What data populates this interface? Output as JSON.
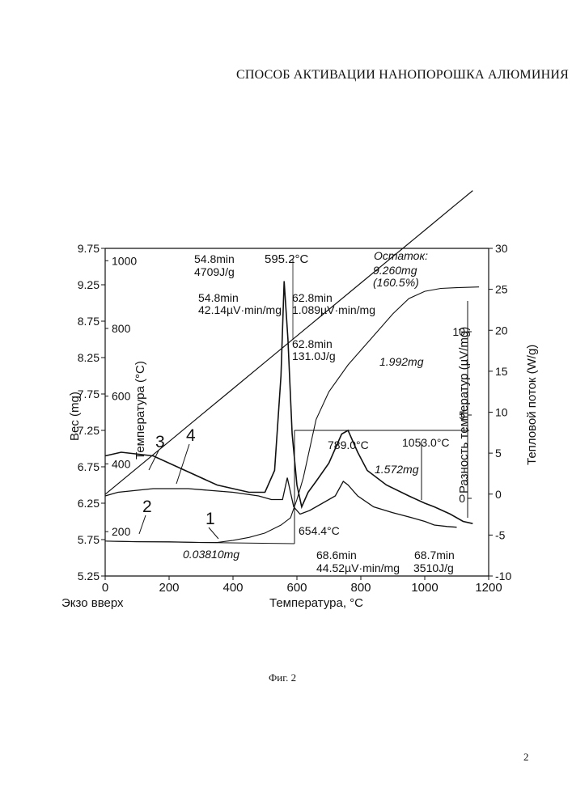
{
  "document": {
    "title": "СПОСОБ АКТИВАЦИИ НАНОПОРОШКА АЛЮМИНИЯ",
    "figure_caption": "Фиг. 2",
    "page_number": "2"
  },
  "chart_data": {
    "type": "line",
    "xlabel": "Температура, °C",
    "x_corner_label": "Экзо вверх",
    "xlim": [
      0,
      1200
    ],
    "x_ticks": [
      "0",
      "200",
      "400",
      "600",
      "800",
      "1000",
      "1200"
    ],
    "axes": {
      "weight": {
        "label": "Вес (mg)",
        "range": [
          5.25,
          9.75
        ],
        "ticks": [
          "9.75",
          "9.25",
          "8.75",
          "8.25",
          "7.75",
          "7.25",
          "6.75",
          "6.25",
          "5.75",
          "5.25"
        ]
      },
      "temperature": {
        "label": "Температура (°C)",
        "range": [
          0,
          1200
        ],
        "ticks": [
          "200",
          "400",
          "600",
          "800",
          "1000"
        ]
      },
      "heat_flow": {
        "label": "Тепловой поток (W/g)",
        "range": [
          -10,
          30
        ],
        "ticks": [
          "30",
          "25",
          "20",
          "15",
          "10",
          "5",
          "0",
          "-5",
          "-10"
        ]
      },
      "temp_difference": {
        "label": "Разность температур (µV/mg)",
        "range": [
          -3,
          13
        ],
        "ticks": [
          "10",
          "5",
          "0"
        ]
      }
    },
    "series": [
      {
        "name": "1",
        "label_x": 348,
        "values": [
          [
            0,
            5.73
          ],
          [
            100,
            5.72
          ],
          [
            200,
            5.72
          ],
          [
            300,
            5.71
          ],
          [
            350,
            5.71
          ],
          [
            400,
            5.74
          ],
          [
            450,
            5.78
          ],
          [
            500,
            5.84
          ],
          [
            550,
            5.95
          ],
          [
            580,
            6.05
          ],
          [
            600,
            6.3
          ],
          [
            620,
            6.6
          ],
          [
            640,
            7.0
          ],
          [
            660,
            7.4
          ],
          [
            700,
            7.78
          ],
          [
            760,
            8.15
          ],
          [
            800,
            8.35
          ],
          [
            850,
            8.6
          ],
          [
            900,
            8.85
          ],
          [
            950,
            9.06
          ],
          [
            1000,
            9.16
          ],
          [
            1050,
            9.2
          ],
          [
            1100,
            9.21
          ],
          [
            1170,
            9.22
          ]
        ]
      },
      {
        "name": "2",
        "label_x": 127,
        "values": [
          [
            0,
            310
          ],
          [
            100,
            388
          ],
          [
            200,
            466
          ],
          [
            300,
            544
          ],
          [
            400,
            622
          ],
          [
            500,
            700
          ],
          [
            600,
            778
          ],
          [
            700,
            856
          ],
          [
            800,
            934
          ],
          [
            900,
            1012
          ],
          [
            1000,
            1090
          ],
          [
            1100,
            1168
          ],
          [
            1150,
            1207
          ]
        ]
      },
      {
        "name": "3",
        "label_x": 47,
        "values": [
          [
            0,
            6.9
          ],
          [
            50,
            6.95
          ],
          [
            150,
            6.9
          ],
          [
            250,
            6.7
          ],
          [
            350,
            6.5
          ],
          [
            450,
            6.4
          ],
          [
            500,
            6.4
          ],
          [
            530,
            6.7
          ],
          [
            550,
            8.0
          ],
          [
            560,
            9.3
          ],
          [
            572,
            8.5
          ],
          [
            585,
            7.2
          ],
          [
            600,
            6.5
          ],
          [
            615,
            6.2
          ],
          [
            635,
            6.4
          ],
          [
            660,
            6.55
          ],
          [
            700,
            6.8
          ],
          [
            740,
            7.2
          ],
          [
            760,
            7.25
          ],
          [
            790,
            6.95
          ],
          [
            820,
            6.7
          ],
          [
            880,
            6.5
          ],
          [
            950,
            6.35
          ],
          [
            1000,
            6.25
          ],
          [
            1030,
            6.2
          ],
          [
            1080,
            6.1
          ],
          [
            1120,
            6.0
          ],
          [
            1150,
            5.97
          ]
        ]
      },
      {
        "name": "4",
        "label_x": 197,
        "values": [
          [
            0,
            6.35
          ],
          [
            40,
            6.4
          ],
          [
            150,
            6.45
          ],
          [
            260,
            6.45
          ],
          [
            400,
            6.4
          ],
          [
            480,
            6.35
          ],
          [
            520,
            6.3
          ],
          [
            555,
            6.3
          ],
          [
            570,
            6.6
          ],
          [
            590,
            6.2
          ],
          [
            610,
            6.1
          ],
          [
            640,
            6.15
          ],
          [
            680,
            6.25
          ],
          [
            720,
            6.35
          ],
          [
            745,
            6.55
          ],
          [
            760,
            6.5
          ],
          [
            790,
            6.35
          ],
          [
            840,
            6.2
          ],
          [
            900,
            6.12
          ],
          [
            960,
            6.05
          ],
          [
            1000,
            6.0
          ],
          [
            1030,
            5.95
          ],
          [
            1070,
            5.93
          ],
          [
            1100,
            5.92
          ]
        ]
      }
    ],
    "annotations": [
      "54.8min",
      "4709J/g",
      "595.2°C",
      "Остаток:",
      "9.260mg",
      "(160.5%)",
      "54.8min",
      "42.14µV·min/mg",
      "62.8min",
      "1.089µV·min/mg",
      "62.8min",
      "131.0J/g",
      "1.992mg",
      "789.0°C",
      "1053.0°C",
      "1.572mg",
      "654.4°C",
      "0.03810mg",
      "68.6min",
      "44.52µV·min/mg",
      "68.7min",
      "3510J/g"
    ]
  }
}
